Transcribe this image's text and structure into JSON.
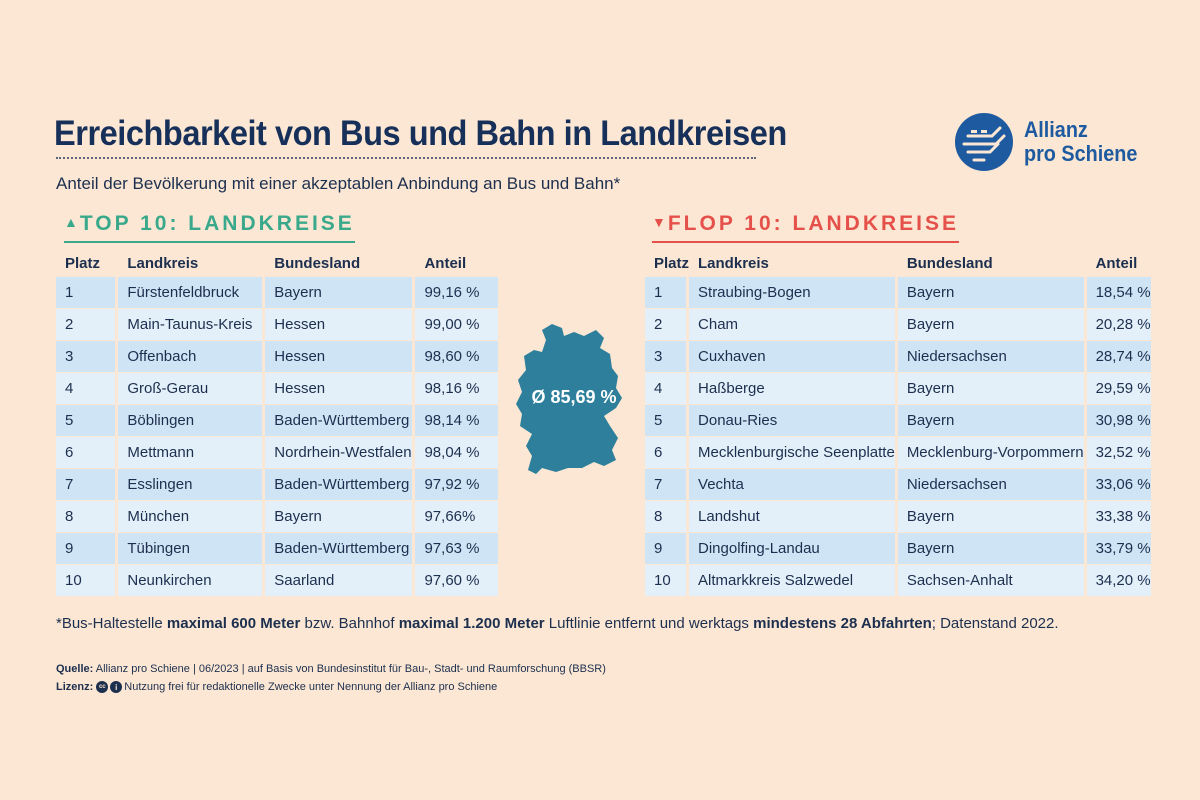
{
  "title": "Erreichbarkeit von Bus und Bahn in Landkreisen",
  "subtitle": "Anteil der Bevölkerung mit einer akzeptablen Anbindung an Bus und Bahn*",
  "logo": {
    "line1": "Allianz",
    "line2": "pro Schiene"
  },
  "top": {
    "heading": "TOP 10: LANDKREISE",
    "columns": [
      "Platz",
      "Landkreis",
      "Bundesland",
      "Anteil"
    ],
    "rows": [
      [
        "1",
        "Fürstenfeldbruck",
        "Bayern",
        "99,16 %"
      ],
      [
        "2",
        "Main-Taunus-Kreis",
        "Hessen",
        "99,00 %"
      ],
      [
        "3",
        "Offenbach",
        "Hessen",
        "98,60 %"
      ],
      [
        "4",
        "Groß-Gerau",
        "Hessen",
        "98,16 %"
      ],
      [
        "5",
        "Böblingen",
        "Baden-Württemberg",
        "98,14 %"
      ],
      [
        "6",
        "Mettmann",
        "Nordrhein-Westfalen",
        "98,04 %"
      ],
      [
        "7",
        "Esslingen",
        "Baden-Württemberg",
        "97,92 %"
      ],
      [
        "8",
        "München",
        "Bayern",
        "97,66%"
      ],
      [
        "9",
        "Tübingen",
        "Baden-Württemberg",
        "97,63 %"
      ],
      [
        "10",
        "Neunkirchen",
        "Saarland",
        "97,60 %"
      ]
    ]
  },
  "flop": {
    "heading": "FLOP 10: LANDKREISE",
    "columns": [
      "Platz",
      "Landkreis",
      "Bundesland",
      "Anteil"
    ],
    "rows": [
      [
        "1",
        "Straubing-Bogen",
        "Bayern",
        "18,54 %"
      ],
      [
        "2",
        "Cham",
        "Bayern",
        "20,28 %"
      ],
      [
        "3",
        "Cuxhaven",
        "Niedersachsen",
        "28,74 %"
      ],
      [
        "4",
        "Haßberge",
        "Bayern",
        "29,59 %"
      ],
      [
        "5",
        "Donau-Ries",
        "Bayern",
        "30,98 %"
      ],
      [
        "6",
        "Mecklenburgische Seenplatte",
        "Mecklenburg-Vorpommern",
        "32,52 %"
      ],
      [
        "7",
        "Vechta",
        "Niedersachsen",
        "33,06 %"
      ],
      [
        "8",
        "Landshut",
        "Bayern",
        "33,38 %"
      ],
      [
        "9",
        "Dingolfing-Landau",
        "Bayern",
        "33,79 %"
      ],
      [
        "10",
        "Altmarkkreis Salzwedel",
        "Sachsen-Anhalt",
        "34,20 %"
      ]
    ]
  },
  "average": "Ø 85,69 %",
  "footnote": {
    "p1": "*Bus-Haltestelle ",
    "b1": "maximal 600 Meter",
    "p2": " bzw. Bahnhof ",
    "b2": "maximal 1.200 Meter",
    "p3": " Luftlinie entfernt und werktags ",
    "b3": "mindestens 28 Abfahrten",
    "p4": "; Datenstand 2022."
  },
  "source": {
    "label": "Quelle:",
    "text": " Allianz pro Schiene | 06/2023 | auf Basis von Bundesinstitut für Bau-, Stadt- und Raumforschung (BBSR)"
  },
  "license": {
    "label": "Lizenz:",
    "cc1": "cc",
    "cc2": "i",
    "text": " Nutzung frei für redaktionelle Zwecke unter Nennung der Allianz pro Schiene"
  },
  "colors": {
    "background": "#fbe7d3",
    "navy": "#17305a",
    "top_green": "#3aa98b",
    "flop_red": "#e5514a",
    "row_a": "#cfe4f4",
    "row_b": "#e4f0f9",
    "map": "#2d7f9b"
  },
  "icons": {
    "top": "arrow-up-icon",
    "flop": "arrow-down-icon",
    "logo": "allianz-logo-icon",
    "cc": "creative-commons-icon",
    "by": "attribution-icon"
  }
}
